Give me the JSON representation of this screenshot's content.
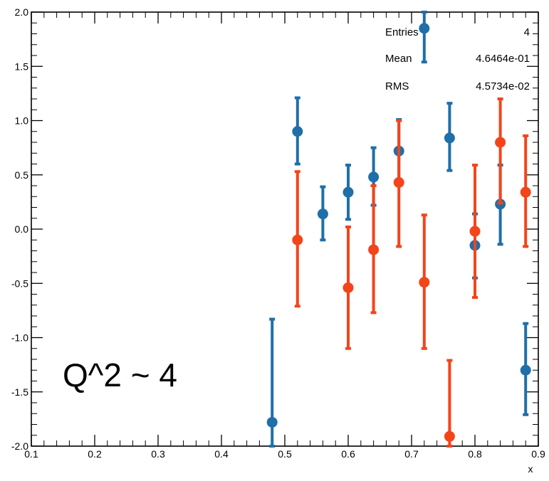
{
  "chart_data": {
    "type": "scatter",
    "title": "",
    "xlabel": "x",
    "ylabel": "",
    "xlim": [
      0.1,
      0.9
    ],
    "ylim": [
      -2.0,
      2.0
    ],
    "x_ticks": [
      0.1,
      0.2,
      0.3,
      0.4,
      0.5,
      0.6,
      0.7,
      0.8,
      0.9
    ],
    "x_tick_labels": [
      "0.1",
      "0.2",
      "0.3",
      "0.4",
      "0.5",
      "0.6",
      "0.7",
      "0.8",
      "0.9"
    ],
    "y_ticks": [
      -2.0,
      -1.5,
      -1.0,
      -0.5,
      0.0,
      0.5,
      1.0,
      1.5,
      2.0
    ],
    "y_tick_labels": [
      "-2.0",
      "-1.5",
      "-1.0",
      "-0.5",
      "0.0",
      "0.5",
      "1.0",
      "1.5",
      "2.0"
    ],
    "grid": false,
    "series": [
      {
        "color": "#1f6fa8",
        "points": [
          {
            "x": 0.48,
            "y": -1.78,
            "ylo": -2.0,
            "yhi": -0.83
          },
          {
            "x": 0.52,
            "y": 0.9,
            "ylo": 0.6,
            "yhi": 1.21
          },
          {
            "x": 0.56,
            "y": 0.14,
            "ylo": -0.1,
            "yhi": 0.39
          },
          {
            "x": 0.6,
            "y": 0.34,
            "ylo": 0.09,
            "yhi": 0.59
          },
          {
            "x": 0.64,
            "y": 0.48,
            "ylo": 0.22,
            "yhi": 0.75
          },
          {
            "x": 0.68,
            "y": 0.72,
            "ylo": 0.42,
            "yhi": 1.01
          },
          {
            "x": 0.72,
            "y": 1.85,
            "ylo": 1.54,
            "yhi": 2.0
          },
          {
            "x": 0.76,
            "y": 0.84,
            "ylo": 0.54,
            "yhi": 1.16
          },
          {
            "x": 0.8,
            "y": -0.15,
            "ylo": -0.45,
            "yhi": 0.14
          },
          {
            "x": 0.84,
            "y": 0.23,
            "ylo": -0.14,
            "yhi": 0.59
          },
          {
            "x": 0.88,
            "y": -1.3,
            "ylo": -1.71,
            "yhi": -0.87
          }
        ]
      },
      {
        "color": "#f4441a",
        "points": [
          {
            "x": 0.52,
            "y": -0.1,
            "ylo": -0.71,
            "yhi": 0.53
          },
          {
            "x": 0.6,
            "y": -0.54,
            "ylo": -1.1,
            "yhi": 0.02
          },
          {
            "x": 0.64,
            "y": -0.19,
            "ylo": -0.77,
            "yhi": 0.4
          },
          {
            "x": 0.68,
            "y": 0.43,
            "ylo": -0.16,
            "yhi": 1.0
          },
          {
            "x": 0.72,
            "y": -0.49,
            "ylo": -1.1,
            "yhi": 0.13
          },
          {
            "x": 0.76,
            "y": -1.91,
            "ylo": -2.0,
            "yhi": -1.21
          },
          {
            "x": 0.8,
            "y": -0.02,
            "ylo": -0.63,
            "yhi": 0.59
          },
          {
            "x": 0.84,
            "y": 0.8,
            "ylo": 0.24,
            "yhi": 1.2
          },
          {
            "x": 0.88,
            "y": 0.34,
            "ylo": -0.16,
            "yhi": 0.86
          }
        ]
      }
    ],
    "stats_box": {
      "rows": [
        {
          "label": "Entries",
          "value": "4"
        },
        {
          "label": "Mean",
          "value": "4.6464e-01"
        },
        {
          "label": "RMS",
          "value": "4.5734e-02"
        }
      ]
    },
    "annotation": "Q^2 ~ 4"
  }
}
